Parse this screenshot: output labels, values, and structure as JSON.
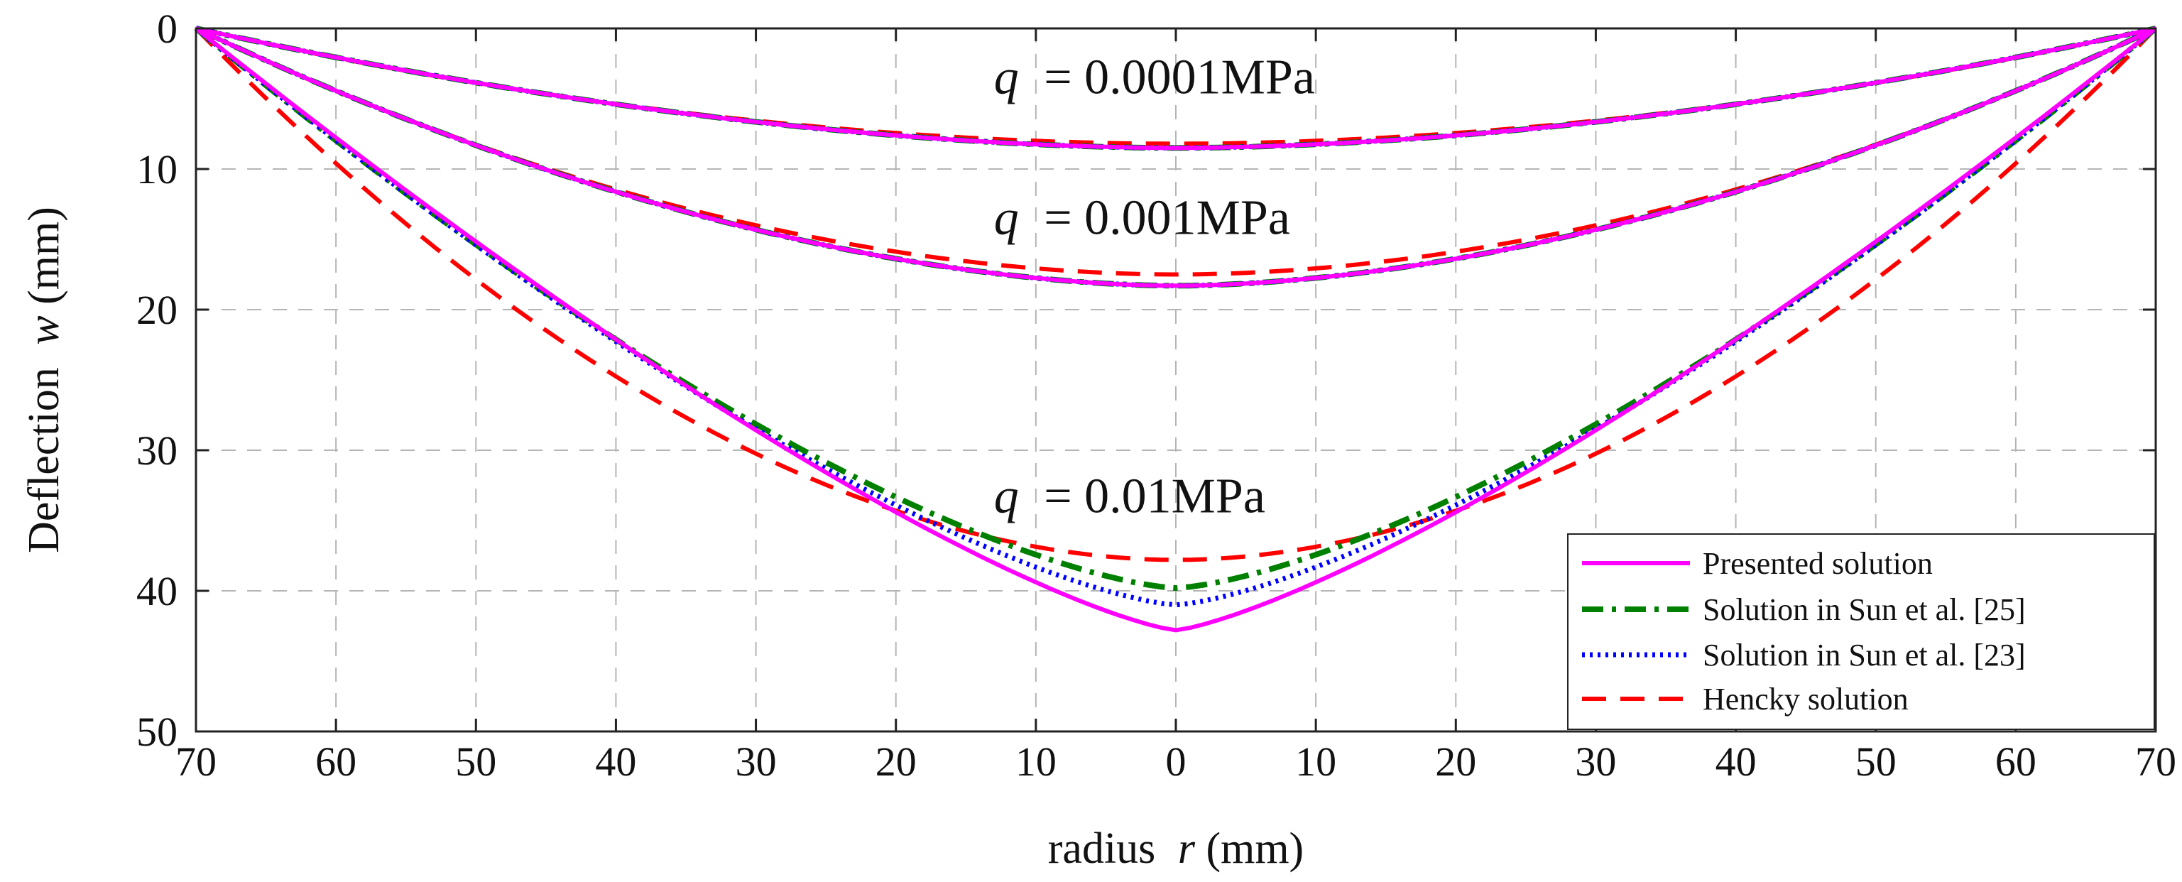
{
  "chart_data": {
    "type": "line",
    "title": "",
    "xlabel": "radius",
    "xlabel_var": "r",
    "xlabel_unit": "(mm)",
    "ylabel": "Deflection",
    "ylabel_var": "w",
    "ylabel_unit": "(mm)",
    "x_axis": {
      "range": [
        -70,
        70
      ],
      "ticks": [
        -70,
        -60,
        -50,
        -40,
        -30,
        -20,
        -10,
        0,
        10,
        20,
        30,
        40,
        50,
        60,
        70
      ],
      "tick_labels": [
        "70",
        "60",
        "50",
        "40",
        "30",
        "20",
        "10",
        "0",
        "10",
        "20",
        "30",
        "40",
        "50",
        "60",
        "70"
      ]
    },
    "y_axis": {
      "range": [
        0,
        50
      ],
      "reversed": true,
      "ticks": [
        0,
        10,
        20,
        30,
        40,
        50
      ],
      "tick_labels": [
        "0",
        "10",
        "20",
        "30",
        "40",
        "50"
      ]
    },
    "grid": true,
    "legend_position": "bottom-right",
    "annotations": [
      {
        "var": "q",
        "text": "= 0.0001MPa",
        "x": -13,
        "y": 3.4
      },
      {
        "var": "q",
        "text": "= 0.001MPa",
        "x": -13,
        "y": 13.4
      },
      {
        "var": "q",
        "text": "= 0.01MPa",
        "x": -13,
        "y": 33.2
      }
    ],
    "series": [
      {
        "name": "Presented solution",
        "color": "#ff00ff",
        "style": "solid",
        "curves": [
          {
            "load": "0.0001MPa",
            "w0": 8.5,
            "p": 1.8
          },
          {
            "load": "0.001MPa",
            "w0": 18.3,
            "p": 1.8
          },
          {
            "load": "0.01MPa",
            "w0": 42.8,
            "p": 1.3
          }
        ]
      },
      {
        "name": "Solution in Sun et al. [25]",
        "color": "#008000",
        "style": "dashdot",
        "curves": [
          {
            "load": "0.0001MPa",
            "w0": 8.5,
            "p": 1.8
          },
          {
            "load": "0.001MPa",
            "w0": 18.3,
            "p": 1.8
          },
          {
            "load": "0.01MPa",
            "w0": 39.8,
            "p": 1.45
          }
        ]
      },
      {
        "name": "Solution in Sun et al. [23]",
        "color": "#0000ff",
        "style": "dotted",
        "curves": [
          {
            "load": "0.0001MPa",
            "w0": 8.5,
            "p": 1.8
          },
          {
            "load": "0.001MPa",
            "w0": 18.3,
            "p": 1.8
          },
          {
            "load": "0.01MPa",
            "w0": 41.0,
            "p": 1.4
          }
        ]
      },
      {
        "name": "Hencky solution",
        "color": "#ff0000",
        "style": "dashed",
        "curves": [
          {
            "load": "0.0001MPa",
            "w0": 8.2,
            "p": 1.9
          },
          {
            "load": "0.001MPa",
            "w0": 17.5,
            "p": 1.9
          },
          {
            "load": "0.01MPa",
            "w0": 37.8,
            "p": 1.9
          }
        ]
      }
    ]
  }
}
